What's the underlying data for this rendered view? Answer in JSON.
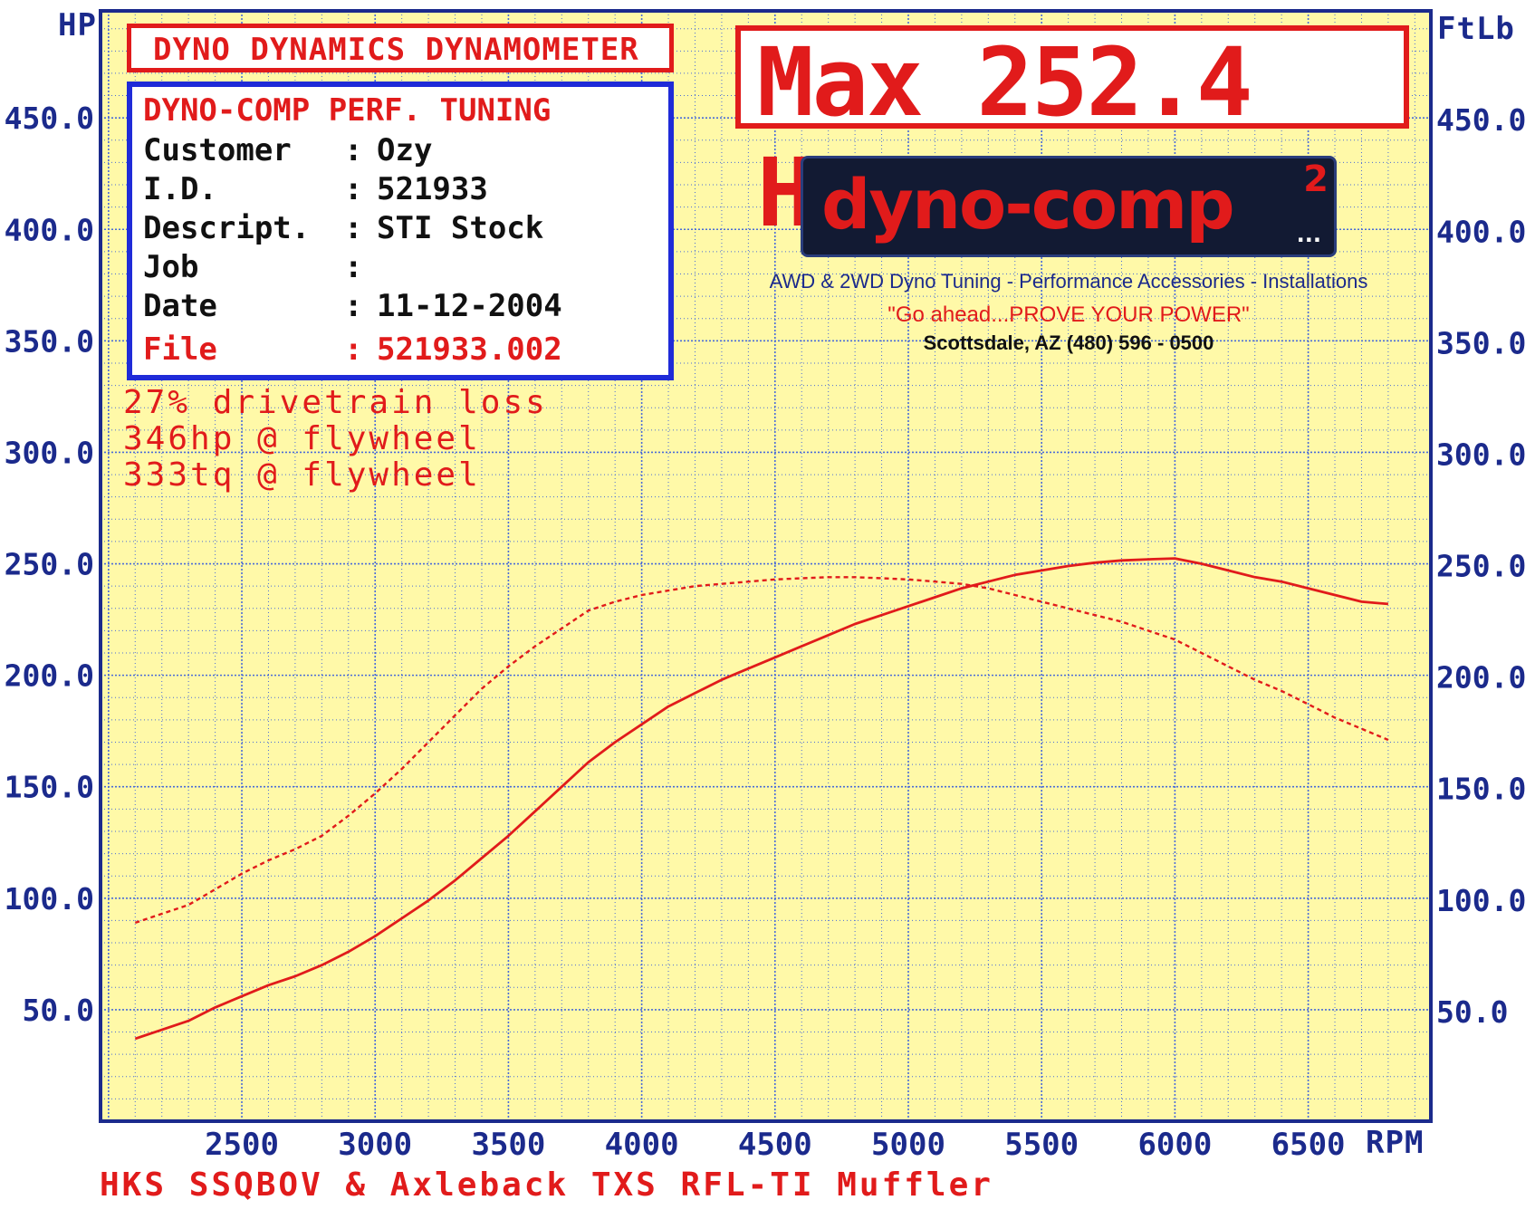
{
  "header": {
    "hp_unit": "HP",
    "torque_unit": "FtLb",
    "rpm_unit": "RPM",
    "title": "DYNO DYNAMICS DYNAMOMETER",
    "max_label": "Max 252.4 HP"
  },
  "info": {
    "heading": "DYNO-COMP PERF. TUNING",
    "rows": [
      {
        "key": "Customer",
        "value": "Ozy"
      },
      {
        "key": "I.D.",
        "value": "521933"
      },
      {
        "key": "Descript.",
        "value": "STI Stock"
      },
      {
        "key": "Job",
        "value": ""
      },
      {
        "key": "Date",
        "value": "11-12-2004"
      },
      {
        "key": "File",
        "value": "521933.002"
      }
    ]
  },
  "logo": {
    "text": "dyno-comp",
    "superscript": "2",
    "dots": "...",
    "tagline": "AWD & 2WD Dyno Tuning - Performance Accessories - Installations",
    "slogan": "\"Go ahead...PROVE YOUR POWER\"",
    "location": "Scottsdale, AZ (480) 596 - 0500"
  },
  "notes": [
    "27% drivetrain loss",
    "346hp @ flywheel",
    "333tq @ flywheel"
  ],
  "footer": "HKS SSQBOV & Axleback TXS RFL-TI Muffler",
  "colors": {
    "plot_bg": "#fff9a8",
    "grid": "#4a6bd8",
    "frame": "#1b2a8c",
    "curve": "#e11b1b",
    "accent_blue": "#1f2bd8"
  },
  "chart_data": {
    "type": "line",
    "x_ticks": [
      2500,
      3000,
      3500,
      4000,
      4500,
      5000,
      5500,
      6000,
      6500
    ],
    "y_ticks": [
      50.0,
      100.0,
      150.0,
      200.0,
      250.0,
      300.0,
      350.0,
      400.0,
      450.0
    ],
    "y_tick_labels": [
      "50.0",
      "100.0",
      "150.0",
      "200.0",
      "250.0",
      "300.0",
      "350.0",
      "400.0",
      "450.0"
    ],
    "xlim": [
      1970,
      6960
    ],
    "ylim": [
      0,
      498
    ],
    "grid": true,
    "series": [
      {
        "style": "solid",
        "x": [
          2100,
          2200,
          2300,
          2400,
          2500,
          2600,
          2700,
          2800,
          2900,
          3000,
          3100,
          3200,
          3300,
          3400,
          3500,
          3600,
          3700,
          3800,
          3900,
          4000,
          4100,
          4200,
          4300,
          4400,
          4500,
          4600,
          4700,
          4800,
          4900,
          5000,
          5100,
          5200,
          5300,
          5400,
          5500,
          5600,
          5700,
          5800,
          5900,
          6000,
          6100,
          6200,
          6300,
          6400,
          6500,
          6600,
          6700,
          6800
        ],
        "values": [
          37,
          41,
          45,
          51,
          56,
          61,
          65,
          70,
          76,
          83,
          91,
          99,
          108,
          118,
          128,
          139,
          150,
          161,
          170,
          178,
          186,
          192,
          198,
          203,
          208,
          213,
          218,
          223,
          227,
          231,
          235,
          239,
          242,
          245,
          247,
          249,
          250.5,
          251.5,
          252,
          252.4,
          250,
          247,
          244,
          242,
          239,
          236,
          233,
          232
        ]
      },
      {
        "style": "dashed",
        "x": [
          2100,
          2200,
          2300,
          2400,
          2500,
          2600,
          2700,
          2800,
          2900,
          3000,
          3100,
          3200,
          3300,
          3400,
          3500,
          3600,
          3700,
          3800,
          3900,
          4000,
          4100,
          4200,
          4300,
          4400,
          4500,
          4600,
          4700,
          4800,
          4900,
          5000,
          5100,
          5200,
          5300,
          5400,
          5500,
          5600,
          5700,
          5800,
          5900,
          6000,
          6100,
          6200,
          6300,
          6400,
          6500,
          6600,
          6700,
          6800
        ],
        "values": [
          89,
          93,
          97,
          104,
          111,
          117,
          122,
          128,
          137,
          147,
          158,
          170,
          182,
          194,
          204,
          213,
          221,
          229,
          233,
          236,
          238,
          240,
          241,
          242,
          243,
          243.5,
          244,
          244,
          243.5,
          243,
          242,
          241,
          239,
          236,
          233,
          230,
          227,
          224,
          220,
          216,
          210,
          204,
          198,
          193,
          187,
          181,
          176,
          171
        ]
      }
    ]
  }
}
